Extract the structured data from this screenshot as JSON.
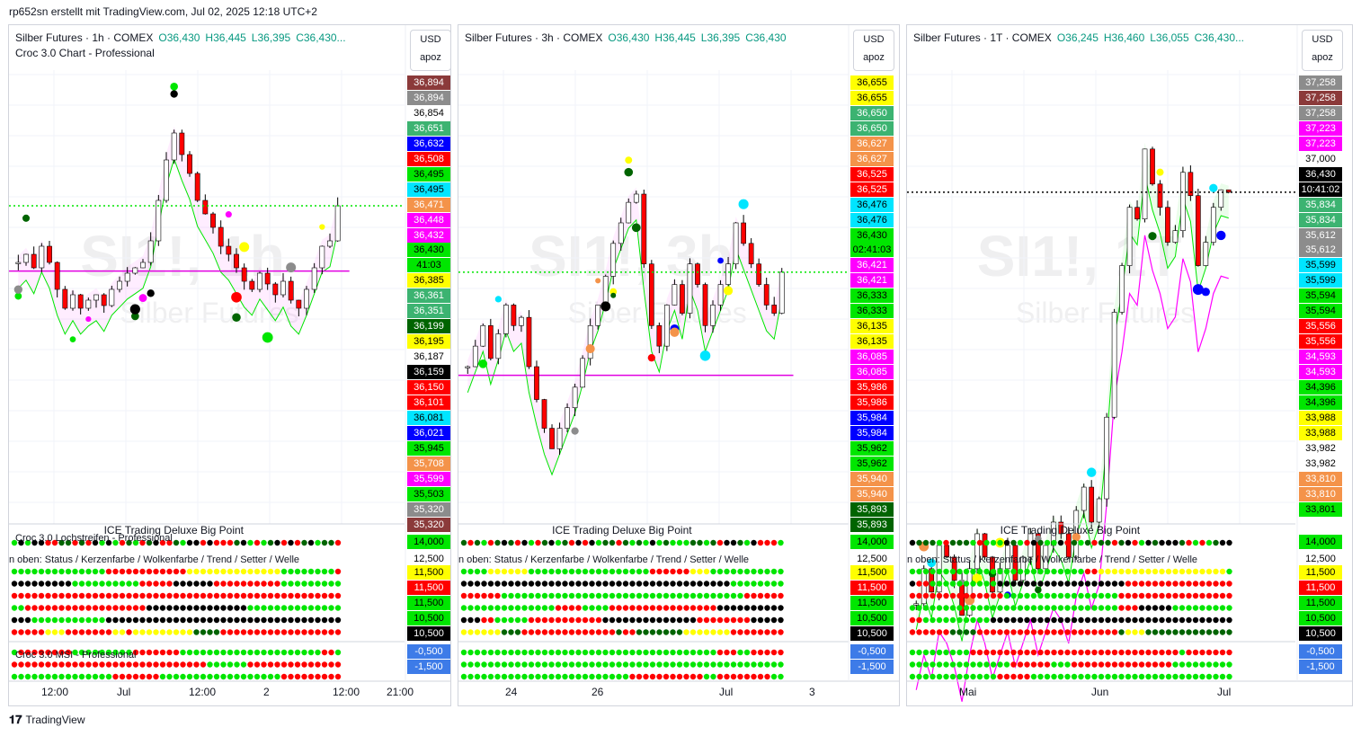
{
  "header": {
    "text": "rp652sn erstellt mit TradingView.com, Jul 02, 2025 12:18 UTC+2"
  },
  "footer": {
    "brand": "TradingView"
  },
  "colors": {
    "green": "#00e600",
    "red": "#ff0000",
    "bull": "#089981",
    "bear": "#f23645",
    "dot_green": "#00e600",
    "dot_black": "#000000",
    "dot_red": "#ff0000"
  },
  "panels": [
    {
      "symbol": "Silber Futures",
      "interval": "1h",
      "exchange": "COMEX",
      "title": "Silber Futures · 1h · COMEX",
      "o": "O36,430",
      "h": "H36,445",
      "l": "L36,395",
      "c": "C36,430...",
      "subtitle": "Croc 3.0 Chart - Professional",
      "currency": "USD",
      "scale_mode": "apoz",
      "watermark": "SI1!, 1h",
      "watermark2": "Silber Futures",
      "ice_label": "ICE Trading Deluxe Big Point",
      "sub1_label": "Croc 3.0 Lochstreifen - Professional",
      "sub2_label": "n oben: Status / Kerzenfarbe / Wolkenfarbe / Trend / Setter / Welle",
      "sub3_label": "Croc 3.0 MSI - Professional",
      "price_tags": [
        {
          "v": "36,894",
          "bg": "#8b3a3a",
          "fg": "#fff"
        },
        {
          "v": "36,894",
          "bg": "#8c8c8c",
          "fg": "#fff"
        },
        {
          "v": "36,854",
          "bg": "#ffffff",
          "fg": "#000"
        },
        {
          "v": "36,651",
          "bg": "#3cb371",
          "fg": "#fff"
        },
        {
          "v": "36,632",
          "bg": "#0000ff",
          "fg": "#fff"
        },
        {
          "v": "36,508",
          "bg": "#ff0000",
          "fg": "#fff"
        },
        {
          "v": "36,495",
          "bg": "#00e600",
          "fg": "#000"
        },
        {
          "v": "36,495",
          "bg": "#00e5ff",
          "fg": "#000"
        },
        {
          "v": "36,471",
          "bg": "#f4934a",
          "fg": "#fff"
        },
        {
          "v": "36,448",
          "bg": "#ff00ff",
          "fg": "#fff"
        },
        {
          "v": "36,432",
          "bg": "#ff00ff",
          "fg": "#fff"
        },
        {
          "v": "36,430",
          "bg": "#00e600",
          "fg": "#000"
        },
        {
          "v": "41:03",
          "bg": "#00e600",
          "fg": "#000"
        },
        {
          "v": "36,385",
          "bg": "#ffff00",
          "fg": "#000"
        },
        {
          "v": "36,361",
          "bg": "#3cb371",
          "fg": "#fff"
        },
        {
          "v": "36,351",
          "bg": "#3cb371",
          "fg": "#fff"
        },
        {
          "v": "36,199",
          "bg": "#006400",
          "fg": "#fff"
        },
        {
          "v": "36,195",
          "bg": "#ffff00",
          "fg": "#000"
        },
        {
          "v": "36,187",
          "bg": "#ffffff",
          "fg": "#000"
        },
        {
          "v": "36,159",
          "bg": "#000000",
          "fg": "#fff"
        },
        {
          "v": "36,150",
          "bg": "#ff0000",
          "fg": "#fff"
        },
        {
          "v": "36,101",
          "bg": "#ff0000",
          "fg": "#fff"
        },
        {
          "v": "36,081",
          "bg": "#00e5ff",
          "fg": "#000"
        },
        {
          "v": "36,021",
          "bg": "#0000ff",
          "fg": "#fff"
        },
        {
          "v": "35,945",
          "bg": "#00e600",
          "fg": "#000"
        },
        {
          "v": "35,708",
          "bg": "#f4934a",
          "fg": "#fff"
        },
        {
          "v": "35,599",
          "bg": "#ff00ff",
          "fg": "#fff"
        },
        {
          "v": "35,503",
          "bg": "#00e600",
          "fg": "#000"
        },
        {
          "v": "35,320",
          "bg": "#8c8c8c",
          "fg": "#fff"
        },
        {
          "v": "35,320",
          "bg": "#8b3a3a",
          "fg": "#fff"
        }
      ],
      "osc_tags": [
        {
          "v": "14,000",
          "bg": "#00e600",
          "fg": "#000"
        },
        {
          "v": "12,500",
          "bg": "#ffffff",
          "fg": "#000"
        },
        {
          "v": "11,500",
          "bg": "#ffff00",
          "fg": "#000"
        },
        {
          "v": "11,500",
          "bg": "#ff0000",
          "fg": "#fff"
        },
        {
          "v": "11,500",
          "bg": "#00e600",
          "fg": "#000"
        },
        {
          "v": "10,500",
          "bg": "#00e600",
          "fg": "#000"
        },
        {
          "v": "10,500",
          "bg": "#000000",
          "fg": "#fff"
        },
        {
          "v": "-0,500",
          "bg": "#3d7be8",
          "fg": "#fff"
        },
        {
          "v": "-1,500",
          "bg": "#3d7be8",
          "fg": "#fff"
        }
      ],
      "x_labels": [
        "12:00",
        "Jul",
        "12:00",
        "2",
        "12:00",
        "21:00"
      ]
    },
    {
      "symbol": "Silber Futures",
      "interval": "3h",
      "exchange": "COMEX",
      "title": "Silber Futures · 3h · COMEX",
      "o": "O36,430",
      "h": "H36,445",
      "l": "L36,395",
      "c": "C36,430",
      "subtitle": "",
      "currency": "USD",
      "scale_mode": "apoz",
      "watermark": "SI1!, 3h",
      "watermark2": "Silber Futures",
      "ice_label": "ICE Trading Deluxe Big Point",
      "sub1_label": "",
      "sub2_label": "n oben: Status / Kerzenfarbe / Wolkenfarbe / Trend / Setter / Welle",
      "sub3_label": "",
      "price_tags": [
        {
          "v": "36,655",
          "bg": "#ffff00",
          "fg": "#000"
        },
        {
          "v": "36,655",
          "bg": "#ffff00",
          "fg": "#000"
        },
        {
          "v": "36,650",
          "bg": "#3cb371",
          "fg": "#fff"
        },
        {
          "v": "36,650",
          "bg": "#3cb371",
          "fg": "#fff"
        },
        {
          "v": "36,627",
          "bg": "#f4934a",
          "fg": "#fff"
        },
        {
          "v": "36,627",
          "bg": "#f4934a",
          "fg": "#fff"
        },
        {
          "v": "36,525",
          "bg": "#ff0000",
          "fg": "#fff"
        },
        {
          "v": "36,525",
          "bg": "#ff0000",
          "fg": "#fff"
        },
        {
          "v": "36,476",
          "bg": "#00e5ff",
          "fg": "#000"
        },
        {
          "v": "36,476",
          "bg": "#00e5ff",
          "fg": "#000"
        },
        {
          "v": "36,430",
          "bg": "#00e600",
          "fg": "#000"
        },
        {
          "v": "02:41:03",
          "bg": "#00e600",
          "fg": "#000"
        },
        {
          "v": "36,421",
          "bg": "#ff00ff",
          "fg": "#fff"
        },
        {
          "v": "36,421",
          "bg": "#ff00ff",
          "fg": "#fff"
        },
        {
          "v": "36,333",
          "bg": "#00e600",
          "fg": "#000"
        },
        {
          "v": "36,333",
          "bg": "#00e600",
          "fg": "#000"
        },
        {
          "v": "36,135",
          "bg": "#ffff00",
          "fg": "#000"
        },
        {
          "v": "36,135",
          "bg": "#ffff00",
          "fg": "#000"
        },
        {
          "v": "36,085",
          "bg": "#ff00ff",
          "fg": "#fff"
        },
        {
          "v": "36,085",
          "bg": "#ff00ff",
          "fg": "#fff"
        },
        {
          "v": "35,986",
          "bg": "#ff0000",
          "fg": "#fff"
        },
        {
          "v": "35,986",
          "bg": "#ff0000",
          "fg": "#fff"
        },
        {
          "v": "35,984",
          "bg": "#0000ff",
          "fg": "#fff"
        },
        {
          "v": "35,984",
          "bg": "#0000ff",
          "fg": "#fff"
        },
        {
          "v": "35,962",
          "bg": "#00e600",
          "fg": "#000"
        },
        {
          "v": "35,962",
          "bg": "#00e600",
          "fg": "#000"
        },
        {
          "v": "35,940",
          "bg": "#f4934a",
          "fg": "#fff"
        },
        {
          "v": "35,940",
          "bg": "#f4934a",
          "fg": "#fff"
        },
        {
          "v": "35,893",
          "bg": "#006400",
          "fg": "#fff"
        },
        {
          "v": "35,893",
          "bg": "#006400",
          "fg": "#fff"
        }
      ],
      "osc_tags": [
        {
          "v": "14,000",
          "bg": "#00e600",
          "fg": "#000"
        },
        {
          "v": "12,500",
          "bg": "#ffffff",
          "fg": "#000"
        },
        {
          "v": "11,500",
          "bg": "#ffff00",
          "fg": "#000"
        },
        {
          "v": "11,500",
          "bg": "#ff0000",
          "fg": "#fff"
        },
        {
          "v": "11,500",
          "bg": "#00e600",
          "fg": "#000"
        },
        {
          "v": "10,500",
          "bg": "#00e600",
          "fg": "#000"
        },
        {
          "v": "10,500",
          "bg": "#000000",
          "fg": "#fff"
        },
        {
          "v": "-0,500",
          "bg": "#3d7be8",
          "fg": "#fff"
        },
        {
          "v": "-1,500",
          "bg": "#3d7be8",
          "fg": "#fff"
        }
      ],
      "x_labels": [
        "24",
        "26",
        "Jul",
        "3"
      ]
    },
    {
      "symbol": "Silber Futures",
      "interval": "1T",
      "exchange": "COMEX",
      "title": "Silber Futures · 1T · COMEX",
      "o": "O36,245",
      "h": "H36,460",
      "l": "L36,055",
      "c": "C36,430...",
      "subtitle": "",
      "currency": "USD",
      "scale_mode": "apoz",
      "watermark": "SI1!, 1T",
      "watermark2": "Silber Futures",
      "ice_label": "ICE Trading Deluxe Big Point",
      "sub1_label": "",
      "sub2_label": "n oben: Status / Kerzenfarbe / Wolkenfarbe / Trend / Setter / Welle",
      "sub3_label": "",
      "price_tags": [
        {
          "v": "37,258",
          "bg": "#8c8c8c",
          "fg": "#fff"
        },
        {
          "v": "37,258",
          "bg": "#8b3a3a",
          "fg": "#fff"
        },
        {
          "v": "37,258",
          "bg": "#8c8c8c",
          "fg": "#fff"
        },
        {
          "v": "37,223",
          "bg": "#ff00ff",
          "fg": "#fff"
        },
        {
          "v": "37,223",
          "bg": "#ff00ff",
          "fg": "#fff"
        },
        {
          "v": "37,000",
          "bg": "#ffffff",
          "fg": "#000"
        },
        {
          "v": "36,430",
          "bg": "#000000",
          "fg": "#fff"
        },
        {
          "v": "10:41:02",
          "bg": "#000000",
          "fg": "#fff"
        },
        {
          "v": "35,834",
          "bg": "#3cb371",
          "fg": "#fff"
        },
        {
          "v": "35,834",
          "bg": "#3cb371",
          "fg": "#fff"
        },
        {
          "v": "35,612",
          "bg": "#8c8c8c",
          "fg": "#fff"
        },
        {
          "v": "35,612",
          "bg": "#8c8c8c",
          "fg": "#fff"
        },
        {
          "v": "35,599",
          "bg": "#00e5ff",
          "fg": "#000"
        },
        {
          "v": "35,599",
          "bg": "#00e5ff",
          "fg": "#000"
        },
        {
          "v": "35,594",
          "bg": "#00e600",
          "fg": "#000"
        },
        {
          "v": "35,594",
          "bg": "#00e600",
          "fg": "#000"
        },
        {
          "v": "35,556",
          "bg": "#ff0000",
          "fg": "#fff"
        },
        {
          "v": "35,556",
          "bg": "#ff0000",
          "fg": "#fff"
        },
        {
          "v": "34,593",
          "bg": "#ff00ff",
          "fg": "#fff"
        },
        {
          "v": "34,593",
          "bg": "#ff00ff",
          "fg": "#fff"
        },
        {
          "v": "34,396",
          "bg": "#00e600",
          "fg": "#000"
        },
        {
          "v": "34,396",
          "bg": "#00e600",
          "fg": "#000"
        },
        {
          "v": "33,988",
          "bg": "#ffff00",
          "fg": "#000"
        },
        {
          "v": "33,988",
          "bg": "#ffff00",
          "fg": "#000"
        },
        {
          "v": "33,982",
          "bg": "#ffffff",
          "fg": "#000"
        },
        {
          "v": "33,982",
          "bg": "#ffffff",
          "fg": "#000"
        },
        {
          "v": "33,810",
          "bg": "#f4934a",
          "fg": "#fff"
        },
        {
          "v": "33,810",
          "bg": "#f4934a",
          "fg": "#fff"
        },
        {
          "v": "33,801",
          "bg": "#00e600",
          "fg": "#000"
        }
      ],
      "osc_tags": [
        {
          "v": "14,000",
          "bg": "#00e600",
          "fg": "#000"
        },
        {
          "v": "12,500",
          "bg": "#ffffff",
          "fg": "#000"
        },
        {
          "v": "11,500",
          "bg": "#ffff00",
          "fg": "#000"
        },
        {
          "v": "11,500",
          "bg": "#ff0000",
          "fg": "#fff"
        },
        {
          "v": "11,500",
          "bg": "#00e600",
          "fg": "#000"
        },
        {
          "v": "10,500",
          "bg": "#00e600",
          "fg": "#000"
        },
        {
          "v": "10,500",
          "bg": "#000000",
          "fg": "#fff"
        },
        {
          "v": "-0,500",
          "bg": "#3d7be8",
          "fg": "#fff"
        },
        {
          "v": "-1,500",
          "bg": "#3d7be8",
          "fg": "#fff"
        }
      ],
      "x_labels": [
        "Mai",
        "Jun",
        "Jul"
      ]
    }
  ],
  "chart_data": [
    {
      "type": "candlestick",
      "title": "Silber Futures · 1h · COMEX",
      "ylim": [
        35.3,
        36.9
      ],
      "close": [
        36.22,
        36.25,
        36.2,
        36.28,
        36.22,
        36.12,
        36.05,
        36.1,
        36.05,
        36.08,
        36.1,
        36.06,
        36.12,
        36.15,
        36.18,
        36.2,
        36.22,
        36.3,
        36.45,
        36.6,
        36.7,
        36.62,
        36.55,
        36.45,
        36.4,
        36.35,
        36.28,
        36.25,
        36.2,
        36.15,
        36.12,
        36.18,
        36.14,
        36.1,
        36.15,
        36.08,
        36.05,
        36.12,
        36.2,
        36.28,
        36.3,
        36.43
      ],
      "last": 36.43
    },
    {
      "type": "candlestick",
      "title": "Silber Futures · 3h · COMEX",
      "ylim": [
        35.85,
        36.9
      ],
      "close": [
        36.2,
        36.25,
        36.3,
        36.22,
        36.28,
        36.35,
        36.3,
        36.32,
        36.2,
        36.12,
        36.05,
        36.0,
        36.05,
        36.1,
        36.15,
        36.22,
        36.3,
        36.35,
        36.42,
        36.5,
        36.55,
        36.6,
        36.62,
        36.45,
        36.3,
        36.25,
        36.35,
        36.4,
        36.33,
        36.45,
        36.4,
        36.3,
        36.35,
        36.4,
        36.45,
        36.55,
        36.5,
        36.45,
        36.4,
        36.35,
        36.33,
        36.43
      ],
      "last": 36.43
    },
    {
      "type": "candlestick",
      "title": "Silber Futures · 1T · COMEX",
      "ylim": [
        33.7,
        37.4
      ],
      "close": [
        32.9,
        33.2,
        33.0,
        33.4,
        33.3,
        33.1,
        32.8,
        33.2,
        33.5,
        33.3,
        33.0,
        33.2,
        33.4,
        33.1,
        33.3,
        33.5,
        33.2,
        33.4,
        33.6,
        33.5,
        33.3,
        33.7,
        33.9,
        33.6,
        33.8,
        34.5,
        35.4,
        35.8,
        36.3,
        36.2,
        36.8,
        36.5,
        36.3,
        36.0,
        36.1,
        36.6,
        36.4,
        35.8,
        36.0,
        36.3,
        36.45,
        36.43
      ],
      "last": 36.43
    }
  ]
}
